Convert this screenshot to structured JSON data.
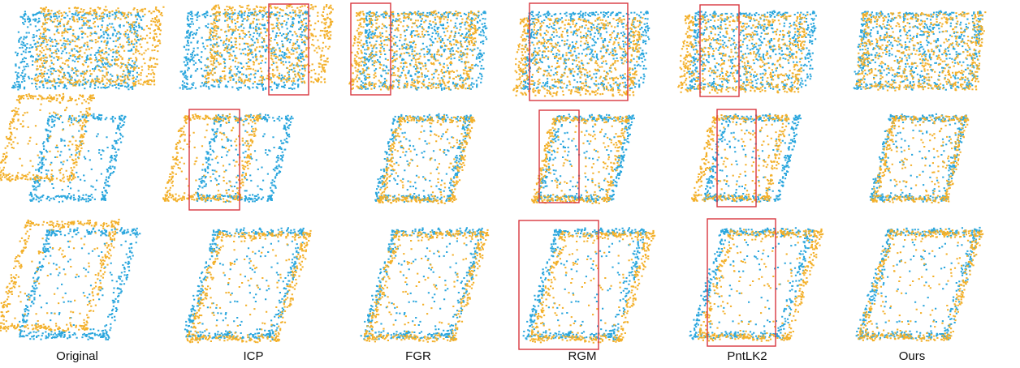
{
  "columns": {
    "labels": [
      "Original",
      "ICP",
      "FGR",
      "RGM",
      "PntLK2",
      "Ours"
    ]
  }
}
